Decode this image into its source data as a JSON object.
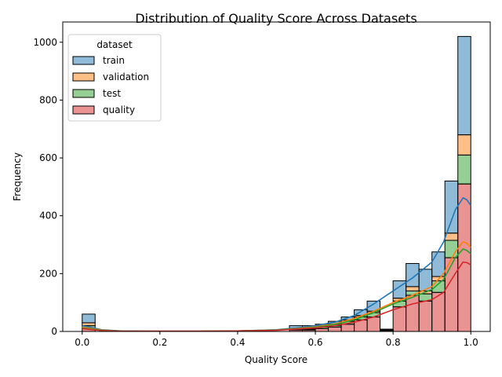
{
  "chart_data": {
    "type": "histogram",
    "title": "Distribution of Quality Score Across Datasets",
    "xlabel": "Quality Score",
    "ylabel": "Frequency",
    "xlim": [
      -0.05,
      1.05
    ],
    "ylim": [
      0,
      1070
    ],
    "x_ticks": [
      0.0,
      0.2,
      0.4,
      0.6,
      0.8,
      1.0
    ],
    "x_tick_labels": [
      "0.0",
      "0.2",
      "0.4",
      "0.6",
      "0.8",
      "1.0"
    ],
    "y_ticks": [
      0,
      200,
      400,
      600,
      800,
      1000
    ],
    "y_tick_labels": [
      "0",
      "200",
      "400",
      "600",
      "800",
      "1000"
    ],
    "grid": false,
    "stacked": true,
    "kde": true,
    "bin_width": 0.0333,
    "bin_starts": [
      0.0,
      0.5333,
      0.5667,
      0.6,
      0.6333,
      0.6667,
      0.7,
      0.7333,
      0.7667,
      0.8,
      0.8333,
      0.8667,
      0.9,
      0.9333,
      0.9667
    ],
    "legend": {
      "title": "dataset",
      "position": "upper left"
    },
    "series": [
      {
        "name": "quality",
        "color": "#d62728",
        "values": [
          10,
          5,
          5,
          10,
          15,
          25,
          40,
          50,
          3,
          85,
          125,
          105,
          135,
          255,
          510
        ]
      },
      {
        "name": "test",
        "color": "#2ca02c",
        "values": [
          10,
          3,
          3,
          5,
          5,
          10,
          10,
          15,
          1,
          20,
          15,
          25,
          40,
          60,
          100
        ]
      },
      {
        "name": "validation",
        "color": "#ff7f0e",
        "values": [
          10,
          2,
          2,
          5,
          5,
          5,
          5,
          5,
          1,
          10,
          15,
          10,
          15,
          25,
          70
        ]
      },
      {
        "name": "train",
        "color": "#1f77b4",
        "values": [
          30,
          10,
          10,
          5,
          10,
          10,
          20,
          35,
          3,
          60,
          80,
          75,
          85,
          180,
          340
        ]
      }
    ],
    "kde_series": [
      {
        "name": "train",
        "color": "#1f77b4",
        "x": [
          0.0,
          0.02,
          0.05,
          0.1,
          0.2,
          0.3,
          0.4,
          0.5,
          0.55,
          0.6,
          0.65,
          0.7,
          0.75,
          0.8,
          0.85,
          0.9,
          0.93,
          0.96,
          0.98,
          0.99,
          1.0
        ],
        "y": [
          20,
          15,
          6,
          2,
          1,
          1,
          2,
          6,
          12,
          20,
          32,
          55,
          95,
          140,
          185,
          240,
          310,
          420,
          462,
          455,
          435
        ]
      },
      {
        "name": "validation",
        "color": "#ff7f0e",
        "x": [
          0.0,
          0.02,
          0.05,
          0.1,
          0.2,
          0.3,
          0.4,
          0.5,
          0.55,
          0.6,
          0.65,
          0.7,
          0.75,
          0.8,
          0.85,
          0.9,
          0.93,
          0.96,
          0.98,
          0.99,
          1.0
        ],
        "y": [
          15,
          11,
          5,
          1,
          1,
          1,
          2,
          5,
          10,
          16,
          26,
          45,
          70,
          100,
          125,
          155,
          200,
          275,
          310,
          305,
          290
        ]
      },
      {
        "name": "test",
        "color": "#2ca02c",
        "x": [
          0.0,
          0.02,
          0.05,
          0.1,
          0.2,
          0.3,
          0.4,
          0.5,
          0.55,
          0.6,
          0.65,
          0.7,
          0.75,
          0.8,
          0.85,
          0.9,
          0.93,
          0.96,
          0.98,
          0.99,
          1.0
        ],
        "y": [
          12,
          9,
          4,
          1,
          1,
          1,
          2,
          5,
          9,
          14,
          24,
          40,
          65,
          95,
          118,
          145,
          180,
          255,
          285,
          280,
          268
        ]
      },
      {
        "name": "quality",
        "color": "#d62728",
        "x": [
          0.0,
          0.02,
          0.05,
          0.1,
          0.2,
          0.3,
          0.4,
          0.5,
          0.55,
          0.6,
          0.65,
          0.7,
          0.75,
          0.8,
          0.85,
          0.9,
          0.93,
          0.96,
          0.98,
          0.99,
          1.0
        ],
        "y": [
          10,
          7,
          3,
          1,
          1,
          1,
          2,
          4,
          8,
          12,
          20,
          32,
          50,
          75,
          95,
          110,
          135,
          200,
          240,
          238,
          230
        ]
      }
    ]
  }
}
